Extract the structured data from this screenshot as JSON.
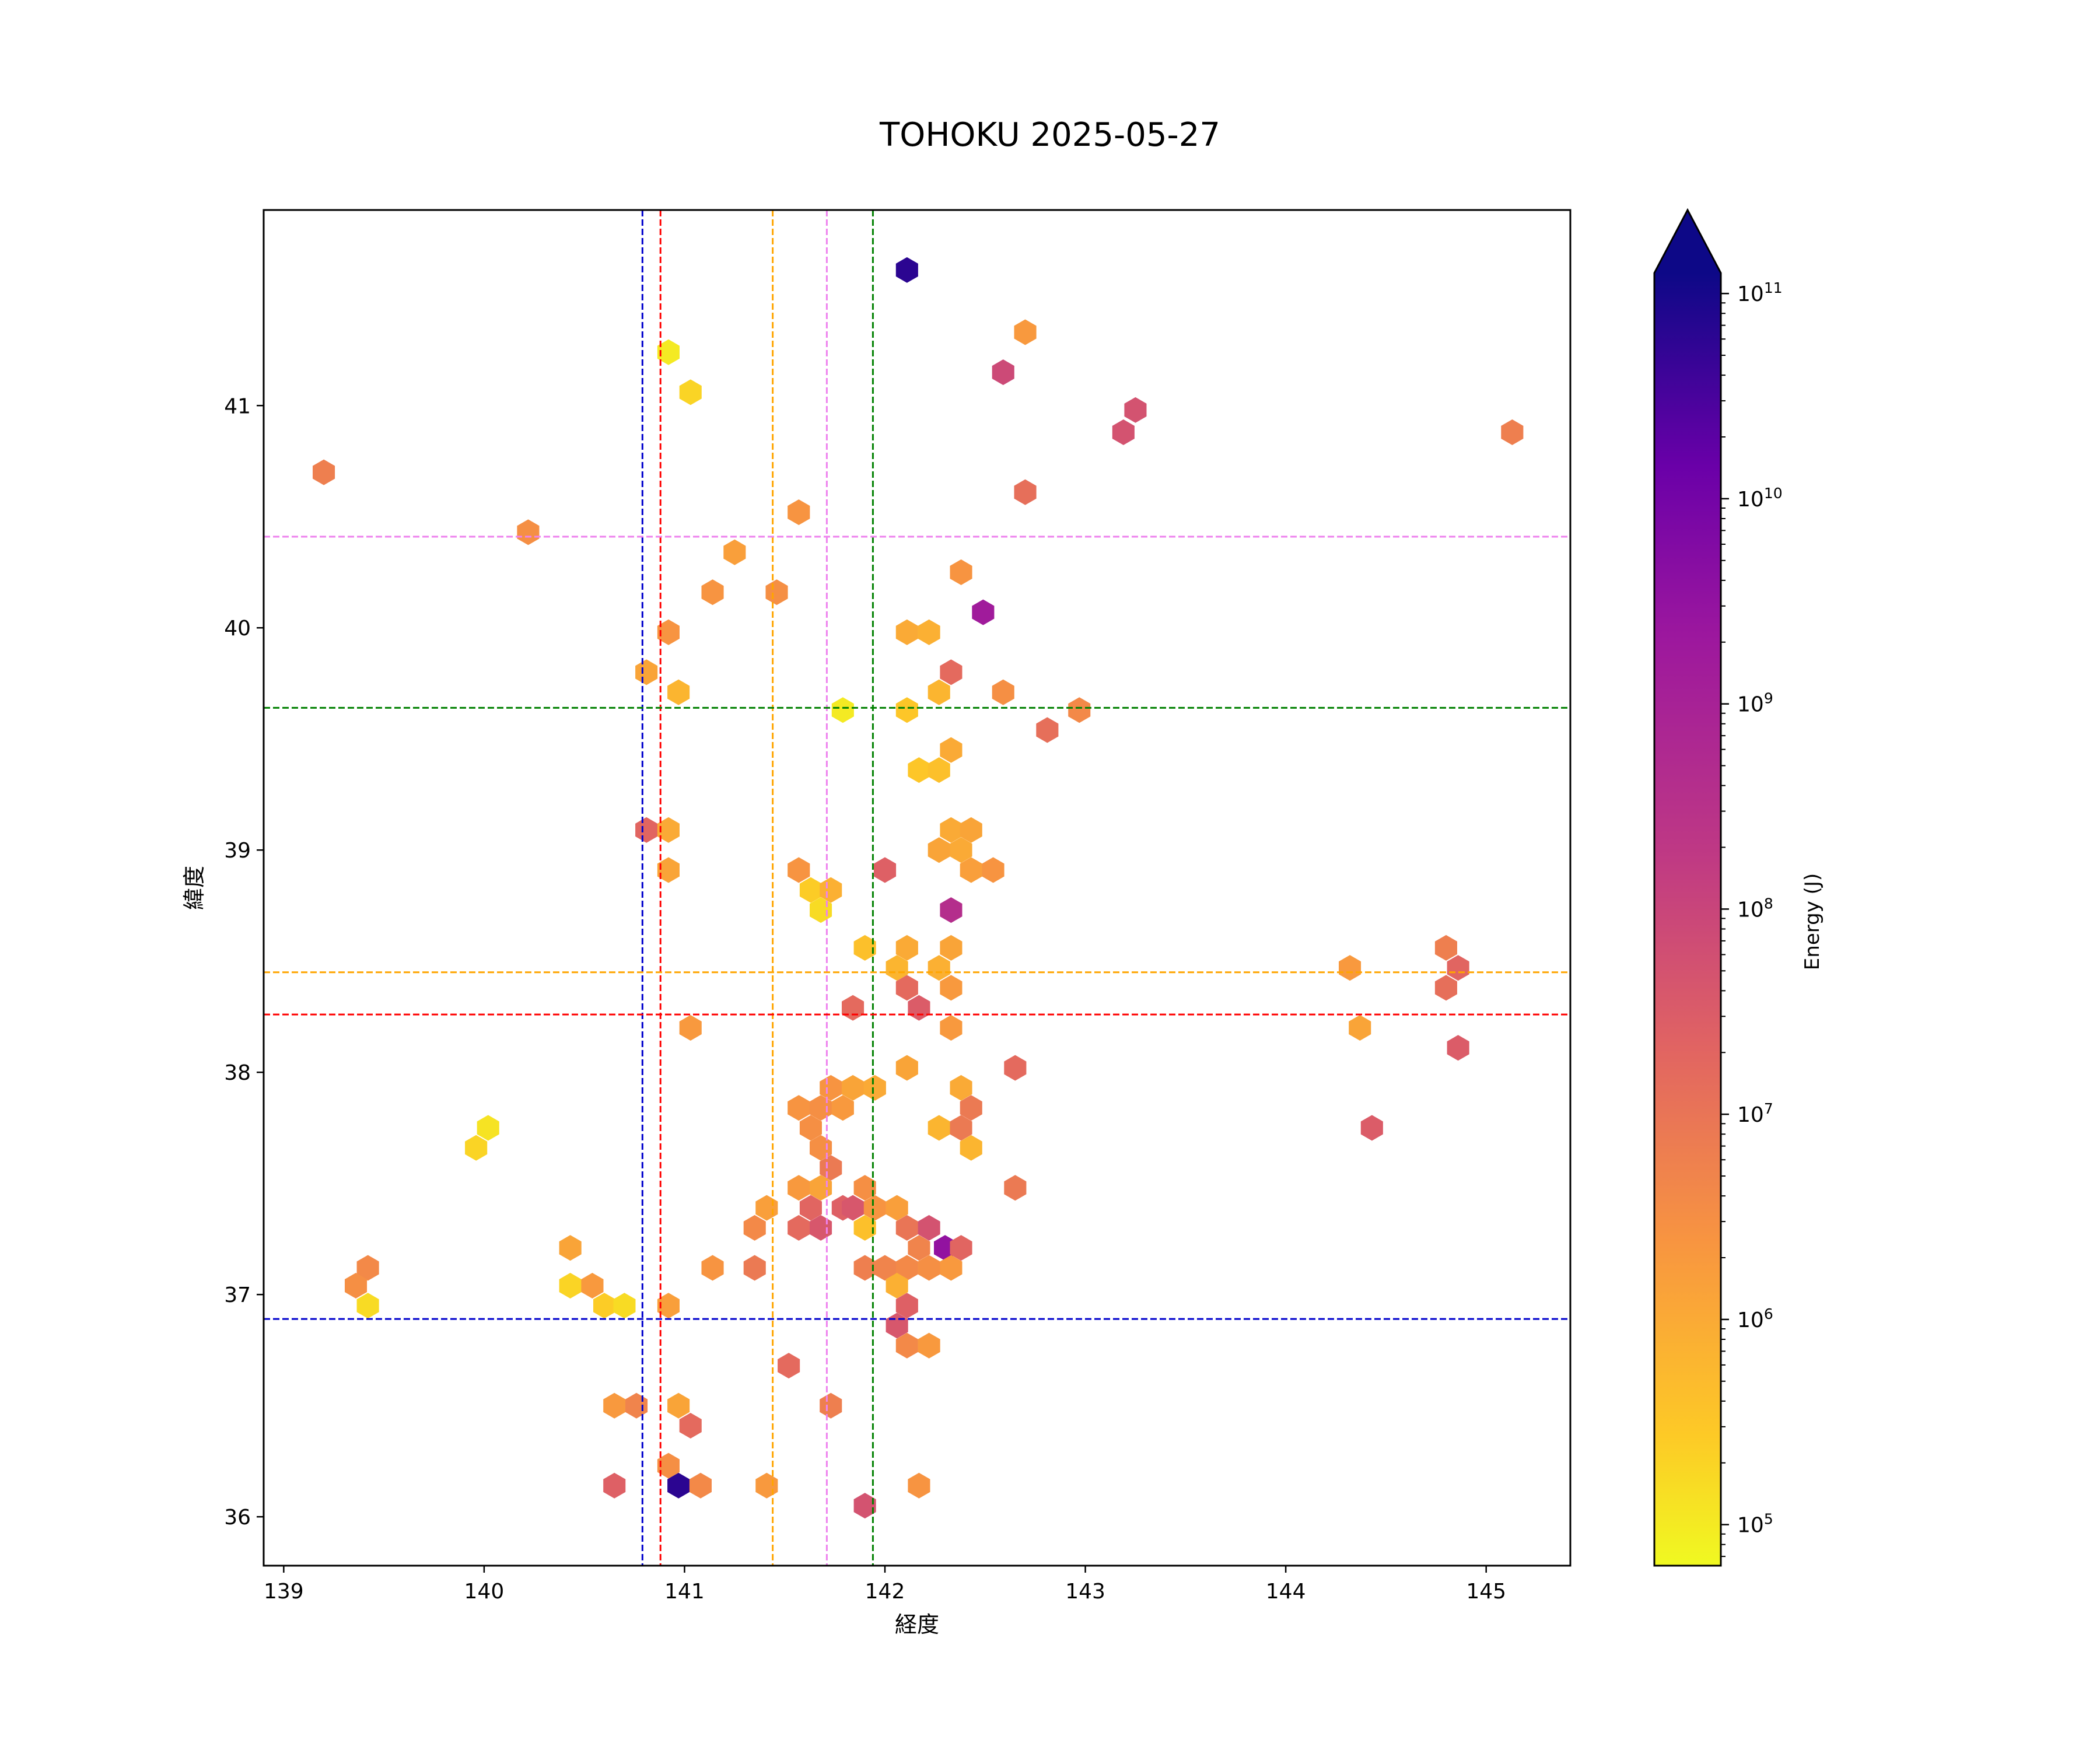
{
  "chart_data": {
    "type": "hexbin",
    "title": "TOHOKU 2025-05-27",
    "xlabel": "経度",
    "ylabel": "緯度",
    "xlim": [
      138.9,
      145.42
    ],
    "ylim": [
      35.78,
      41.88
    ],
    "xticks": [
      139,
      140,
      141,
      142,
      143,
      144,
      145
    ],
    "yticks": [
      36,
      37,
      38,
      39,
      40,
      41
    ],
    "colorbar": {
      "label": "Energy (J)",
      "scale": "log",
      "min_exp": 4.8,
      "max_exp": 11.1,
      "extend": "max",
      "colormap": "plasma_r",
      "ticks": [
        {
          "exp": 5,
          "base": "10",
          "sup": "5"
        },
        {
          "exp": 6,
          "base": "10",
          "sup": "6"
        },
        {
          "exp": 7,
          "base": "10",
          "sup": "7"
        },
        {
          "exp": 8,
          "base": "10",
          "sup": "8"
        },
        {
          "exp": 9,
          "base": "10",
          "sup": "9"
        },
        {
          "exp": 10,
          "base": "10",
          "sup": "10"
        },
        {
          "exp": 11,
          "base": "10",
          "sup": "11"
        }
      ]
    },
    "reference_lines": [
      {
        "orientation": "vertical",
        "value": 140.79,
        "color": "#0000cc"
      },
      {
        "orientation": "vertical",
        "value": 140.88,
        "color": "#ff0000"
      },
      {
        "orientation": "vertical",
        "value": 141.44,
        "color": "#ffa500"
      },
      {
        "orientation": "vertical",
        "value": 141.71,
        "color": "#ee82ee"
      },
      {
        "orientation": "vertical",
        "value": 141.94,
        "color": "#008000"
      },
      {
        "orientation": "horizontal",
        "value": 40.41,
        "color": "#ee82ee"
      },
      {
        "orientation": "horizontal",
        "value": 39.64,
        "color": "#008000"
      },
      {
        "orientation": "horizontal",
        "value": 38.45,
        "color": "#ffa500"
      },
      {
        "orientation": "horizontal",
        "value": 38.26,
        "color": "#ff0000"
      },
      {
        "orientation": "horizontal",
        "value": 36.89,
        "color": "#0000cc"
      }
    ],
    "points": [
      [
        142.11,
        41.61,
        10.8
      ],
      [
        142.7,
        41.33,
        6.3
      ],
      [
        140.92,
        41.24,
        5.0
      ],
      [
        141.03,
        41.06,
        5.3
      ],
      [
        142.59,
        41.15,
        7.9
      ],
      [
        143.25,
        40.98,
        7.7
      ],
      [
        143.19,
        40.88,
        7.7
      ],
      [
        145.13,
        40.88,
        6.8
      ],
      [
        139.2,
        40.7,
        6.8
      ],
      [
        142.7,
        40.61,
        7.1
      ],
      [
        141.57,
        40.52,
        6.4
      ],
      [
        140.22,
        40.43,
        6.5
      ],
      [
        141.25,
        40.34,
        6.2
      ],
      [
        142.38,
        40.25,
        6.4
      ],
      [
        141.14,
        40.16,
        6.4
      ],
      [
        141.46,
        40.16,
        6.5
      ],
      [
        142.49,
        40.07,
        9.2
      ],
      [
        140.92,
        39.98,
        6.4
      ],
      [
        142.11,
        39.98,
        6.0
      ],
      [
        142.22,
        39.98,
        5.9
      ],
      [
        140.81,
        39.8,
        6.1
      ],
      [
        142.33,
        39.8,
        7.2
      ],
      [
        140.97,
        39.71,
        5.8
      ],
      [
        142.27,
        39.71,
        5.8
      ],
      [
        142.59,
        39.71,
        6.5
      ],
      [
        141.79,
        39.63,
        5.0
      ],
      [
        142.11,
        39.63,
        5.5
      ],
      [
        142.97,
        39.63,
        6.6
      ],
      [
        142.81,
        39.54,
        7.1
      ],
      [
        142.33,
        39.45,
        6.0
      ],
      [
        142.17,
        39.36,
        5.5
      ],
      [
        142.27,
        39.36,
        5.6
      ],
      [
        140.81,
        39.09,
        7.3
      ],
      [
        140.92,
        39.09,
        6.0
      ],
      [
        142.33,
        39.09,
        6.0
      ],
      [
        142.43,
        39.09,
        6.1
      ],
      [
        142.27,
        39.0,
        6.1
      ],
      [
        142.38,
        39.0,
        6.0
      ],
      [
        141.57,
        38.91,
        6.4
      ],
      [
        140.92,
        38.91,
        6.1
      ],
      [
        142.0,
        38.91,
        7.4
      ],
      [
        142.43,
        38.91,
        6.2
      ],
      [
        142.54,
        38.91,
        6.4
      ],
      [
        141.63,
        38.82,
        5.4
      ],
      [
        141.73,
        38.82,
        5.9
      ],
      [
        141.68,
        38.73,
        5.2
      ],
      [
        142.33,
        38.73,
        8.6
      ],
      [
        141.9,
        38.56,
        5.6
      ],
      [
        142.11,
        38.56,
        6.0
      ],
      [
        142.33,
        38.56,
        6.1
      ],
      [
        144.8,
        38.56,
        6.8
      ],
      [
        142.06,
        38.47,
        5.8
      ],
      [
        142.27,
        38.47,
        5.9
      ],
      [
        144.32,
        38.47,
        6.3
      ],
      [
        144.86,
        38.47,
        7.3
      ],
      [
        142.11,
        38.38,
        7.2
      ],
      [
        142.33,
        38.38,
        6.3
      ],
      [
        144.8,
        38.38,
        7.1
      ],
      [
        141.84,
        38.29,
        7.2
      ],
      [
        142.17,
        38.29,
        7.5
      ],
      [
        141.03,
        38.2,
        6.3
      ],
      [
        142.33,
        38.2,
        6.3
      ],
      [
        144.37,
        38.2,
        6.1
      ],
      [
        144.86,
        38.11,
        7.5
      ],
      [
        142.11,
        38.02,
        6.1
      ],
      [
        142.65,
        38.02,
        7.2
      ],
      [
        141.73,
        37.93,
        6.4
      ],
      [
        141.84,
        37.93,
        6.1
      ],
      [
        141.95,
        37.93,
        6.0
      ],
      [
        142.38,
        37.93,
        6.0
      ],
      [
        141.57,
        37.84,
        6.4
      ],
      [
        141.68,
        37.84,
        6.5
      ],
      [
        141.79,
        37.84,
        6.3
      ],
      [
        142.43,
        37.84,
        6.9
      ],
      [
        141.63,
        37.75,
        6.5
      ],
      [
        142.27,
        37.75,
        5.8
      ],
      [
        142.38,
        37.75,
        6.9
      ],
      [
        144.43,
        37.75,
        7.5
      ],
      [
        140.02,
        37.75,
        5.1
      ],
      [
        139.96,
        37.66,
        5.3
      ],
      [
        141.68,
        37.66,
        6.5
      ],
      [
        142.43,
        37.66,
        5.8
      ],
      [
        141.73,
        37.57,
        6.9
      ],
      [
        141.57,
        37.48,
        6.3
      ],
      [
        141.68,
        37.48,
        6.1
      ],
      [
        141.9,
        37.48,
        6.5
      ],
      [
        142.65,
        37.48,
        6.9
      ],
      [
        141.41,
        37.39,
        6.2
      ],
      [
        141.63,
        37.39,
        7.3
      ],
      [
        141.79,
        37.39,
        7.4
      ],
      [
        141.84,
        37.39,
        7.6
      ],
      [
        141.95,
        37.39,
        6.4
      ],
      [
        142.06,
        37.39,
        6.2
      ],
      [
        141.35,
        37.3,
        6.6
      ],
      [
        141.57,
        37.3,
        7.2
      ],
      [
        141.68,
        37.3,
        7.6
      ],
      [
        141.9,
        37.3,
        5.6
      ],
      [
        142.11,
        37.3,
        7.0
      ],
      [
        142.22,
        37.3,
        7.7
      ],
      [
        142.17,
        37.21,
        6.7
      ],
      [
        142.3,
        37.21,
        9.5
      ],
      [
        142.38,
        37.21,
        7.3
      ],
      [
        140.43,
        37.21,
        6.1
      ],
      [
        139.42,
        37.12,
        6.6
      ],
      [
        141.14,
        37.12,
        6.4
      ],
      [
        141.35,
        37.12,
        6.9
      ],
      [
        141.9,
        37.12,
        6.8
      ],
      [
        142.0,
        37.12,
        6.7
      ],
      [
        142.11,
        37.12,
        6.6
      ],
      [
        142.22,
        37.12,
        6.5
      ],
      [
        142.33,
        37.12,
        6.3
      ],
      [
        139.36,
        37.04,
        6.5
      ],
      [
        140.43,
        37.04,
        5.3
      ],
      [
        140.54,
        37.04,
        6.3
      ],
      [
        142.06,
        37.04,
        5.9
      ],
      [
        139.42,
        36.95,
        5.2
      ],
      [
        140.6,
        36.95,
        5.4
      ],
      [
        140.7,
        36.95,
        5.2
      ],
      [
        140.92,
        36.95,
        6.2
      ],
      [
        142.11,
        36.95,
        7.4
      ],
      [
        142.06,
        36.86,
        7.6
      ],
      [
        142.11,
        36.77,
        6.6
      ],
      [
        142.22,
        36.77,
        6.3
      ],
      [
        141.52,
        36.68,
        7.2
      ],
      [
        140.65,
        36.5,
        6.3
      ],
      [
        140.76,
        36.5,
        6.7
      ],
      [
        140.97,
        36.5,
        6.1
      ],
      [
        141.73,
        36.5,
        6.8
      ],
      [
        141.03,
        36.41,
        7.2
      ],
      [
        140.92,
        36.23,
        6.5
      ],
      [
        140.65,
        36.14,
        7.4
      ],
      [
        140.97,
        36.14,
        10.8
      ],
      [
        141.08,
        36.14,
        6.6
      ],
      [
        141.41,
        36.14,
        6.3
      ],
      [
        142.17,
        36.14,
        6.4
      ],
      [
        141.9,
        36.05,
        7.7
      ]
    ]
  }
}
